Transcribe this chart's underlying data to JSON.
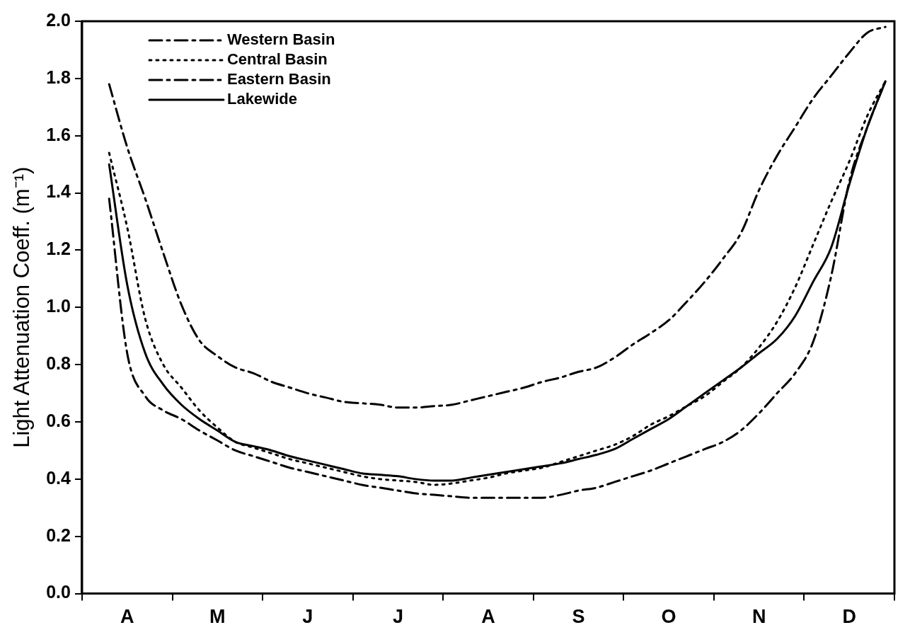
{
  "chart_data": {
    "type": "line",
    "ylabel": "Light Attenuation Coeff. (m⁻¹)",
    "categories": [
      null,
      null,
      "A",
      null,
      null,
      null,
      null,
      "M",
      null,
      null,
      null,
      null,
      "J",
      null,
      null,
      null,
      null,
      "J",
      null,
      null,
      null,
      null,
      "A",
      null,
      null,
      null,
      null,
      "S",
      null,
      null,
      null,
      null,
      "O",
      null,
      null,
      null,
      null,
      "N",
      null,
      null,
      null,
      null,
      "D",
      null,
      null
    ],
    "ylim": [
      0,
      2
    ],
    "yticks": [
      {
        "value": 0,
        "label": "0.0"
      },
      0.2,
      0.4,
      0.6,
      0.8,
      {
        "value": 1,
        "label": "1.0"
      },
      1.2,
      1.4,
      1.6,
      1.8,
      {
        "value": 2,
        "label": "2.0"
      }
    ],
    "legend": "top left",
    "marker": "none",
    "series": [
      {
        "name": "Western Basin",
        "color": "#000000",
        "line_style": "dashed",
        "values": [
          null,
          1.78,
          1.56,
          1.38,
          1.19,
          1.01,
          0.885,
          0.83,
          0.79,
          0.77,
          0.74,
          0.72,
          0.7,
          0.685,
          0.67,
          0.665,
          0.66,
          0.65,
          0.65,
          0.655,
          0.66,
          0.675,
          0.69,
          0.705,
          0.72,
          0.74,
          0.755,
          0.775,
          0.79,
          0.825,
          0.87,
          0.91,
          0.955,
          1.02,
          1.09,
          1.17,
          1.26,
          1.41,
          1.53,
          1.63,
          1.73,
          1.81,
          1.89,
          1.96,
          1.98
        ]
      },
      {
        "name": "Central Basin",
        "color": "#000000",
        "line_style": "dotted",
        "values": [
          null,
          1.54,
          1.28,
          0.96,
          0.8,
          0.72,
          0.64,
          0.58,
          0.53,
          0.51,
          0.49,
          0.47,
          0.455,
          0.44,
          0.425,
          0.41,
          0.4,
          0.395,
          0.39,
          0.38,
          0.385,
          0.395,
          0.405,
          0.42,
          0.43,
          0.44,
          0.46,
          0.48,
          0.5,
          0.52,
          0.55,
          0.59,
          0.62,
          0.655,
          0.69,
          0.74,
          0.79,
          0.86,
          0.95,
          1.07,
          1.22,
          1.37,
          1.51,
          1.67,
          1.79
        ]
      },
      {
        "name": "Eastern Basin",
        "color": "#000000",
        "line_style": "dashed",
        "values": [
          null,
          1.38,
          0.84,
          0.69,
          0.64,
          0.61,
          0.57,
          0.535,
          0.5,
          0.48,
          0.46,
          0.44,
          0.425,
          0.41,
          0.395,
          0.38,
          0.37,
          0.36,
          0.35,
          0.345,
          0.34,
          0.335,
          0.335,
          0.335,
          0.335,
          0.335,
          0.345,
          0.36,
          0.37,
          0.39,
          0.41,
          0.43,
          0.455,
          0.48,
          0.505,
          0.53,
          0.57,
          0.63,
          0.7,
          0.77,
          0.88,
          1.11,
          1.44,
          1.63,
          1.79
        ]
      },
      {
        "name": "Lakewide",
        "color": "#000000",
        "line_style": "solid",
        "values": [
          null,
          1.5,
          1.08,
          0.84,
          0.73,
          0.66,
          0.61,
          0.57,
          0.53,
          0.515,
          0.5,
          0.48,
          0.465,
          0.45,
          0.435,
          0.42,
          0.415,
          0.41,
          0.4,
          0.395,
          0.395,
          0.405,
          0.415,
          0.425,
          0.435,
          0.445,
          0.455,
          0.47,
          0.485,
          0.505,
          0.54,
          0.575,
          0.61,
          0.655,
          0.7,
          0.745,
          0.79,
          0.84,
          0.89,
          0.97,
          1.09,
          1.21,
          1.43,
          1.63,
          1.79
        ]
      }
    ]
  }
}
